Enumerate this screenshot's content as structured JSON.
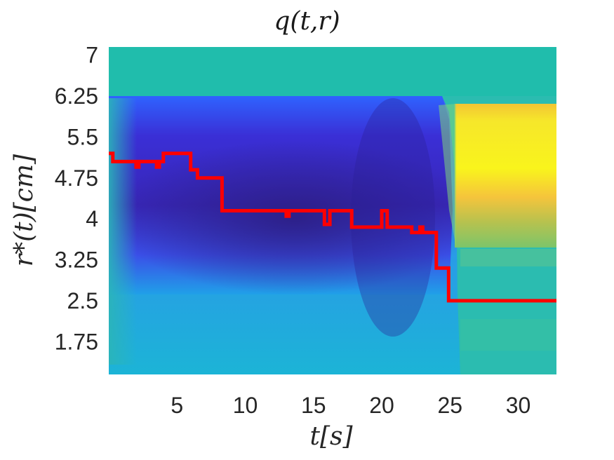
{
  "chart_data": {
    "type": "heatmap",
    "title": "q(t,r)",
    "xlabel": "t[s]",
    "ylabel": "r*(t)[cm]",
    "xlim": [
      0,
      32.8
    ],
    "ylim": [
      1.15,
      7.15
    ],
    "x_ticks": [
      "5",
      "10",
      "15",
      "20",
      "25",
      "30"
    ],
    "y_ticks": [
      "1.75",
      "2.5",
      "3.25",
      "4",
      "4.75",
      "5.5",
      "6.25",
      "7"
    ],
    "grid": false,
    "legend": "none",
    "colormap": "parula",
    "line_color": "#ff0000",
    "series": [
      {
        "kind": "line",
        "x": [
          0,
          0.3,
          0.3,
          2,
          2,
          2.2,
          2.2,
          3.5,
          3.5,
          3.7,
          3.7,
          4,
          4,
          4.2,
          4.2,
          6,
          6,
          6.5,
          6.5,
          7,
          7,
          8.3,
          8.3,
          13,
          13,
          13.2,
          13.2,
          15.8,
          15.8,
          16.2,
          16.2,
          17.8,
          17.8,
          20,
          20,
          20.4,
          20.4,
          22.2,
          22.2,
          22.8,
          22.8,
          23,
          23,
          23.4,
          23.4,
          24,
          24,
          24.9,
          24.9,
          32.8
        ],
        "y": [
          5.2,
          5.2,
          5.05,
          5.05,
          4.95,
          4.95,
          5.05,
          5.05,
          4.95,
          4.95,
          5.05,
          5.05,
          5.2,
          5.2,
          5.2,
          5.2,
          4.9,
          4.9,
          4.75,
          4.75,
          4.75,
          4.75,
          4.15,
          4.15,
          4.05,
          4.05,
          4.15,
          4.15,
          3.9,
          3.9,
          4.15,
          4.15,
          3.85,
          3.85,
          4.15,
          4.15,
          3.85,
          3.85,
          3.75,
          3.75,
          3.85,
          3.85,
          3.75,
          3.75,
          3.75,
          3.75,
          3.1,
          3.1,
          2.5,
          2.5
        ]
      }
    ]
  }
}
